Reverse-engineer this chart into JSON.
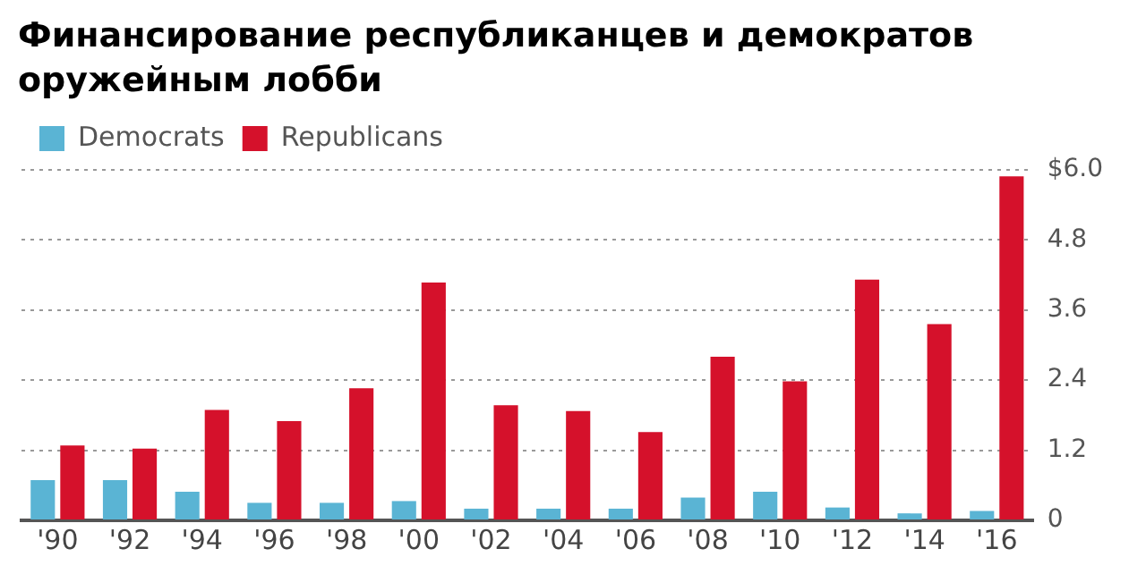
{
  "chart_data": {
    "type": "bar",
    "title": "Финансирование республиканцев и демократов оружейным лобби",
    "categories": [
      "'90",
      "'92",
      "'94",
      "'96",
      "'98",
      "'00",
      "'02",
      "'04",
      "'06",
      "'08",
      "'10",
      "'12",
      "'14",
      "'16"
    ],
    "series": [
      {
        "name": "Democrats",
        "color": "#5ab4d4",
        "values": [
          0.69,
          0.69,
          0.49,
          0.3,
          0.3,
          0.33,
          0.2,
          0.2,
          0.2,
          0.39,
          0.49,
          0.22,
          0.12,
          0.16
        ]
      },
      {
        "name": "Republicans",
        "color": "#d5112b",
        "values": [
          1.28,
          1.23,
          1.89,
          1.7,
          2.26,
          4.07,
          1.97,
          1.87,
          1.51,
          2.8,
          2.38,
          4.12,
          3.36,
          5.89
        ]
      }
    ],
    "ylim": [
      0,
      6
    ],
    "yticks": [
      0,
      1.2,
      2.4,
      3.6,
      4.8,
      {
        "value": 6,
        "label": "$6.0"
      }
    ],
    "grid": "y",
    "legend": "top left"
  }
}
